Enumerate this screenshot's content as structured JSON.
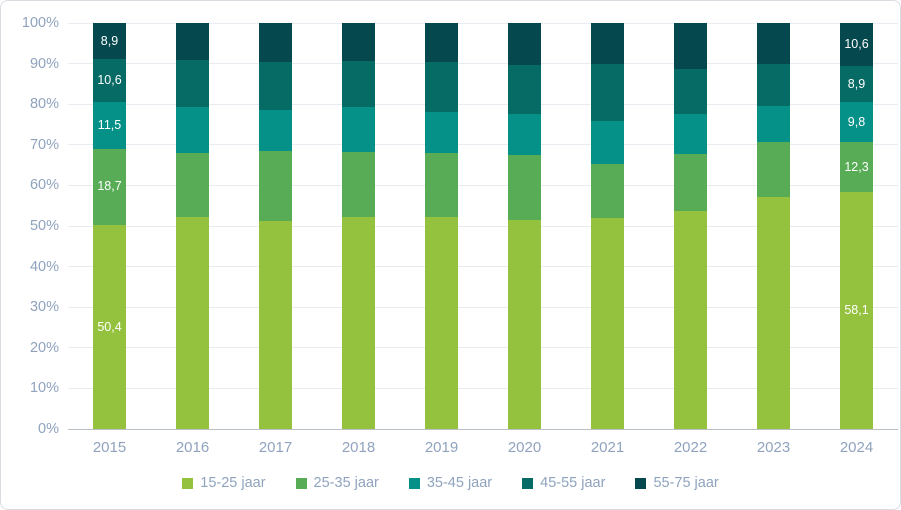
{
  "chart_data": {
    "type": "bar",
    "subtype": "stacked-100",
    "title": "",
    "xlabel": "",
    "ylabel": "",
    "ylim": [
      0,
      100
    ],
    "grid": true,
    "legend_position": "bottom",
    "y_ticks": [
      "0%",
      "10%",
      "20%",
      "30%",
      "40%",
      "50%",
      "60%",
      "70%",
      "80%",
      "90%",
      "100%"
    ],
    "categories": [
      "2015",
      "2016",
      "2017",
      "2018",
      "2019",
      "2020",
      "2021",
      "2022",
      "2023",
      "2024"
    ],
    "series": [
      {
        "name": "15-25 jaar",
        "color": "#94c13e",
        "values": [
          50.4,
          52.3,
          51.2,
          52.3,
          52.2,
          51.4,
          51.9,
          53.7,
          57.1,
          58.1
        ]
      },
      {
        "name": "25-35 jaar",
        "color": "#58ac56",
        "values": [
          18.7,
          15.8,
          17.3,
          15.9,
          15.9,
          16.0,
          13.3,
          14.0,
          13.5,
          12.3
        ]
      },
      {
        "name": "35-45 jaar",
        "color": "#059188",
        "values": [
          11.5,
          11.1,
          10.1,
          11.1,
          10.1,
          10.1,
          10.7,
          9.8,
          9.0,
          9.8
        ]
      },
      {
        "name": "45-55 jaar",
        "color": "#066a65",
        "values": [
          10.6,
          11.7,
          11.9,
          11.4,
          12.1,
          12.2,
          14.0,
          11.1,
          10.3,
          8.9
        ]
      },
      {
        "name": "55-75 jaar",
        "color": "#05494f",
        "values": [
          8.9,
          9.1,
          9.5,
          9.3,
          9.7,
          10.3,
          10.1,
          11.4,
          10.1,
          10.6
        ]
      }
    ],
    "data_labels": {
      "2015": [
        "50,4",
        "18,7",
        "11,5",
        "10,6",
        "8,9"
      ],
      "2024": [
        "58,1",
        "12,3",
        "9,8",
        "8,9",
        "10,6"
      ]
    },
    "colors": {
      "axis_label": "#8fa3be",
      "gridline": "#e8ecf1",
      "axis_line": "#b9c0c8",
      "data_label": "#ffffff",
      "frame_border": "#d9dde2",
      "background": "#ffffff"
    }
  }
}
